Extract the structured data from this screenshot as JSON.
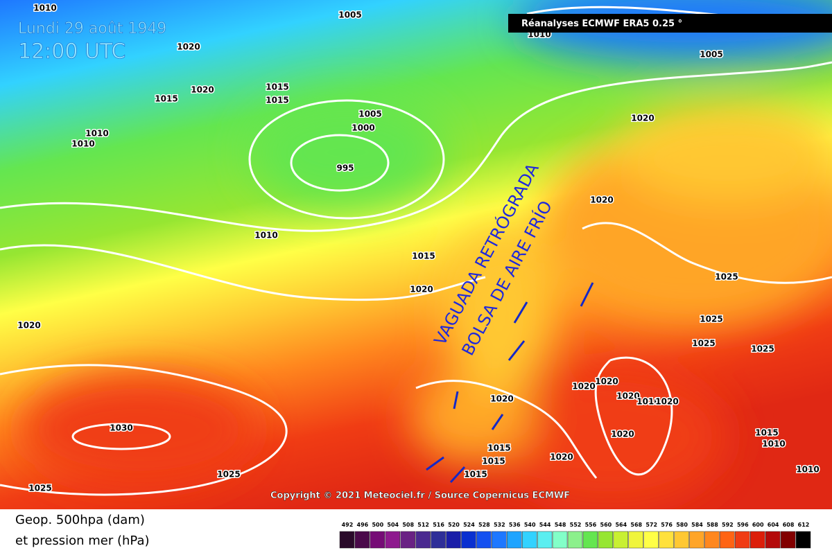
{
  "header": {
    "date": "Lundi 29 août 1949",
    "time": "12:00 UTC",
    "source": "Réanalyses ECMWF ERA5 0.25 °"
  },
  "annotations": {
    "trough": "VAGUADA RETRÓGRADA",
    "cold_pool": "BOLSA DE AIRE FRÍO"
  },
  "copyright": "Copyright © 2021 Meteociel.fr / Source Copernicus ECMWF",
  "isobar_labels": [
    "1010",
    "1005",
    "1020",
    "1020",
    "1015",
    "1015",
    "1015",
    "1010",
    "1010",
    "1005",
    "1000",
    "995",
    "1005",
    "1010",
    "1020",
    "1020",
    "1010",
    "1015",
    "1020",
    "1020",
    "1025",
    "1025",
    "1025",
    "1025",
    "1020",
    "1020",
    "1020",
    "1020",
    "1010",
    "1020",
    "1030",
    "1020",
    "1015",
    "1015",
    "1015",
    "1020",
    "1025",
    "1025",
    "1015",
    "1010",
    "1010"
  ],
  "legend": {
    "line1": "Geop. 500hpa (dam)",
    "line2": "et pression mer (hPa)",
    "scale": [
      492,
      496,
      500,
      504,
      508,
      512,
      516,
      520,
      524,
      528,
      532,
      536,
      540,
      544,
      548,
      552,
      556,
      560,
      564,
      568,
      572,
      576,
      580,
      584,
      588,
      592,
      596,
      600,
      604,
      608,
      612
    ],
    "colors": [
      "#2a0a2a",
      "#4a0a4a",
      "#760c76",
      "#8e1a8e",
      "#6a2284",
      "#4a2a90",
      "#2e2e98",
      "#1a1ea8",
      "#0a30d0",
      "#1450f0",
      "#1e78ff",
      "#1ea4ff",
      "#32d2ff",
      "#5aeef0",
      "#82ffc8",
      "#8cf08c",
      "#64e650",
      "#96e632",
      "#c8f032",
      "#f0f53c",
      "#ffff46",
      "#ffe13c",
      "#ffc832",
      "#ffa528",
      "#ff871e",
      "#ff6414",
      "#f03c14",
      "#dc1e0a",
      "#b40a0a",
      "#820000",
      "#000000"
    ]
  }
}
